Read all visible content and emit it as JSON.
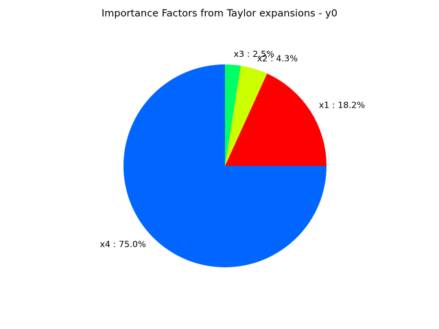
{
  "chart_data": {
    "type": "pie",
    "title": "Importance Factors from Taylor expansions - y0",
    "slices": [
      {
        "label": "x1 : 18.2%",
        "name": "x1",
        "value": 18.2,
        "color": "#ff0000"
      },
      {
        "label": "x2 : 4.3%",
        "name": "x2",
        "value": 4.3,
        "color": "#ccff00"
      },
      {
        "label": "x3 : 2.5%",
        "name": "x3",
        "value": 2.5,
        "color": "#00ff66"
      },
      {
        "label": "x4 : 75.0%",
        "name": "x4",
        "value": 75.0,
        "color": "#0066ff"
      }
    ],
    "start_angle_deg": 0,
    "direction": "counterclockwise",
    "legend": "none"
  }
}
